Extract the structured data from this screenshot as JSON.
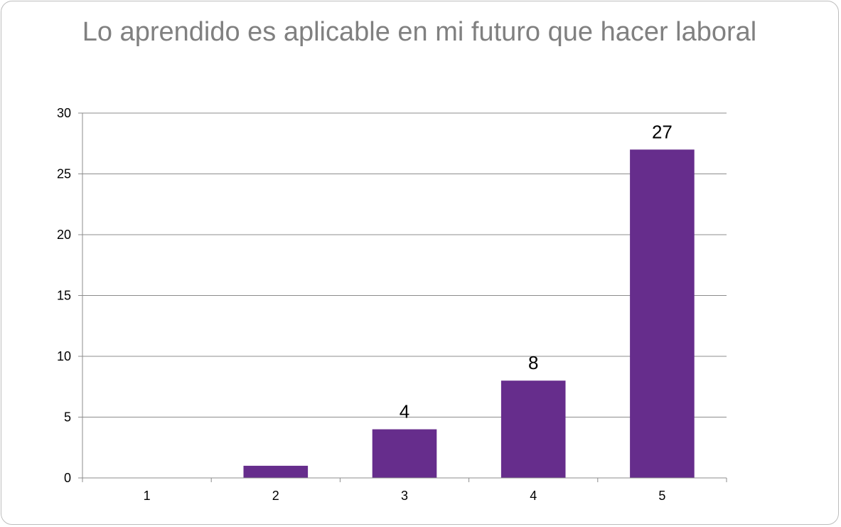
{
  "chart_data": {
    "type": "bar",
    "title": "Lo aprendido es aplicable en mi futuro que hacer laboral",
    "categories": [
      "1",
      "2",
      "3",
      "4",
      "5"
    ],
    "values": [
      0,
      1,
      4,
      8,
      27
    ],
    "data_labels": [
      "",
      "",
      "4",
      "8",
      "27"
    ],
    "ylim": [
      0,
      30
    ],
    "yticks": [
      0,
      5,
      10,
      15,
      20,
      25,
      30
    ],
    "grid": true,
    "legend": "none",
    "bar_color": "#662d8c"
  }
}
